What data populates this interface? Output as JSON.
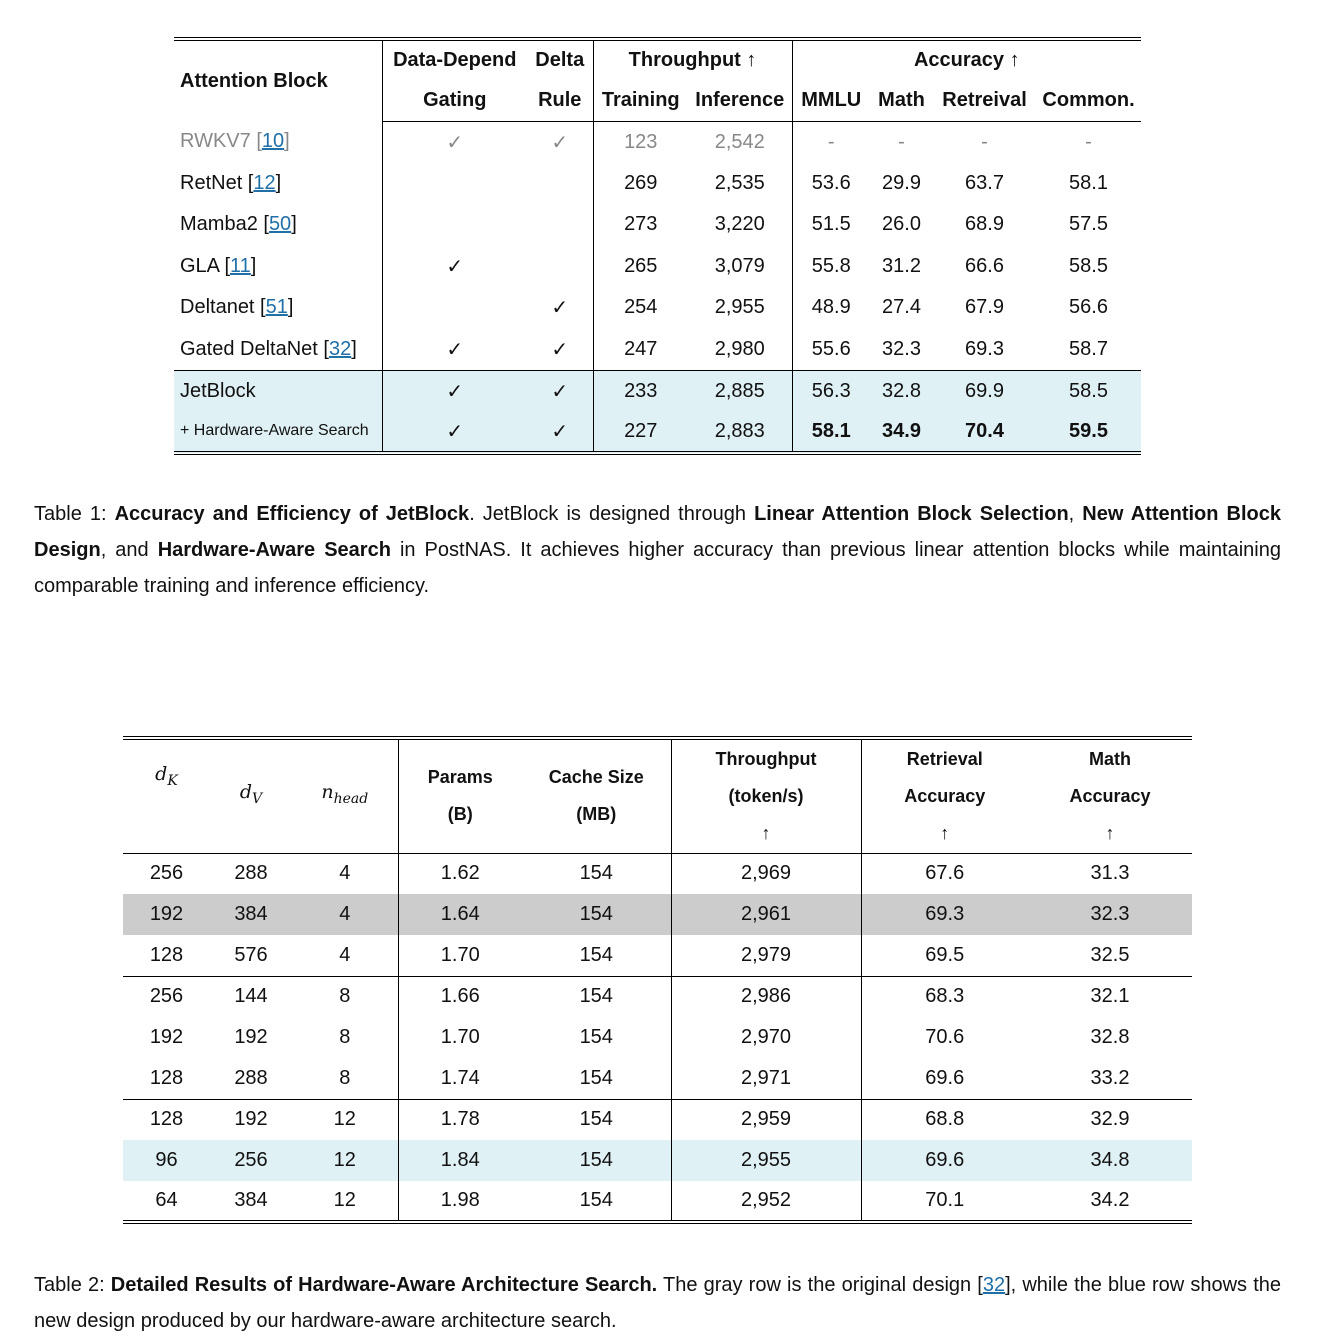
{
  "table1": {
    "header": {
      "attention_block": "Attention Block",
      "gating": [
        "Data-Depend",
        "Gating"
      ],
      "delta": [
        "Delta",
        "Rule"
      ],
      "throughput": "Throughput ↑",
      "training": "Training",
      "inference": "Inference",
      "accuracy": "Accuracy ↑",
      "mmlu": "MMLU",
      "math": "Math",
      "retrieval": "Retreival",
      "common": "Common."
    },
    "rows": [
      {
        "name": [
          {
            "text": "RWKV7 ["
          },
          {
            "text": "10",
            "link": true
          },
          {
            "text": "]"
          }
        ],
        "cells": [
          "✓",
          "✓",
          "123",
          "2,542",
          "-",
          "-",
          "-",
          "-"
        ],
        "muted": true
      },
      {
        "name": [
          {
            "text": "RetNet ["
          },
          {
            "text": "12",
            "link": true
          },
          {
            "text": "]"
          }
        ],
        "cells": [
          null,
          null,
          "269",
          "2,535",
          "53.6",
          "29.9",
          "63.7",
          "58.1"
        ]
      },
      {
        "name": [
          {
            "text": "Mamba2 ["
          },
          {
            "text": "50",
            "link": true
          },
          {
            "text": "]"
          }
        ],
        "cells": [
          null,
          null,
          "273",
          "3,220",
          "51.5",
          "26.0",
          "68.9",
          "57.5"
        ]
      },
      {
        "name": [
          {
            "text": "GLA ["
          },
          {
            "text": "11",
            "link": true
          },
          {
            "text": "]"
          }
        ],
        "cells": [
          "✓",
          null,
          "265",
          "3,079",
          "55.8",
          "31.2",
          "66.6",
          "58.5"
        ]
      },
      {
        "name": [
          {
            "text": "Deltanet ["
          },
          {
            "text": "51",
            "link": true
          },
          {
            "text": "]"
          }
        ],
        "cells": [
          null,
          "✓",
          "254",
          "2,955",
          "48.9",
          "27.4",
          "67.9",
          "56.6"
        ]
      },
      {
        "name": [
          {
            "text": "Gated DeltaNet ["
          },
          {
            "text": "32",
            "link": true
          },
          {
            "text": "]"
          }
        ],
        "cells": [
          "✓",
          "✓",
          "247",
          "2,980",
          "55.6",
          "32.3",
          "69.3",
          "58.7"
        ]
      },
      {
        "name": [
          {
            "text": "JetBlock"
          }
        ],
        "cells": [
          "✓",
          "✓",
          "233",
          "2,885",
          "56.3",
          "32.8",
          "69.9",
          "58.5"
        ],
        "highlight": true
      },
      {
        "name": [
          {
            "text": "+ Hardware-Aware Search"
          }
        ],
        "cells": [
          "✓",
          "✓",
          "227",
          "2,883",
          "58.1",
          "34.9",
          "70.4",
          "59.5"
        ],
        "highlight": true,
        "small_name": true,
        "bold_accuracy": true
      }
    ]
  },
  "caption1": [
    {
      "text": "Table 1: "
    },
    {
      "text": "Accuracy and Efficiency of JetBlock",
      "bold": true
    },
    {
      "text": ". JetBlock is designed through "
    },
    {
      "text": "Linear Attention Block Selection",
      "bold": true
    },
    {
      "text": ", "
    },
    {
      "text": "New Attention Block Design",
      "bold": true
    },
    {
      "text": ", and "
    },
    {
      "text": "Hardware-Aware Search",
      "bold": true
    },
    {
      "text": " in PostNAS. It achieves higher accuracy than previous linear attention blocks while maintaining comparable training and inference efficiency."
    }
  ],
  "table2": {
    "header": [
      {
        "base": "d",
        "sub": "K"
      },
      {
        "base": "d",
        "sub": "V"
      },
      {
        "base": "n",
        "sub": "head"
      },
      {
        "lines": [
          "Params",
          "(B)"
        ]
      },
      {
        "lines": [
          "Cache Size",
          "(MB)"
        ]
      },
      {
        "lines": [
          "Throughput",
          "(token/s)",
          "↑"
        ]
      },
      {
        "lines": [
          "Retrieval",
          "Accuracy",
          "↑"
        ]
      },
      {
        "lines": [
          "Math",
          "Accuracy",
          "↑"
        ]
      }
    ],
    "rows": [
      {
        "cells": [
          "256",
          "288",
          "4",
          "1.62",
          "154",
          "2,969",
          "67.6",
          "31.3"
        ]
      },
      {
        "cells": [
          "192",
          "384",
          "4",
          "1.64",
          "154",
          "2,961",
          "69.3",
          "32.3"
        ],
        "shade": "gray"
      },
      {
        "cells": [
          "128",
          "576",
          "4",
          "1.70",
          "154",
          "2,979",
          "69.5",
          "32.5"
        ]
      },
      {
        "cells": [
          "256",
          "144",
          "8",
          "1.66",
          "154",
          "2,986",
          "68.3",
          "32.1"
        ],
        "group_break": true
      },
      {
        "cells": [
          "192",
          "192",
          "8",
          "1.70",
          "154",
          "2,970",
          "70.6",
          "32.8"
        ]
      },
      {
        "cells": [
          "128",
          "288",
          "8",
          "1.74",
          "154",
          "2,971",
          "69.6",
          "33.2"
        ]
      },
      {
        "cells": [
          "128",
          "192",
          "12",
          "1.78",
          "154",
          "2,959",
          "68.8",
          "32.9"
        ],
        "group_break": true
      },
      {
        "cells": [
          "96",
          "256",
          "12",
          "1.84",
          "154",
          "2,955",
          "69.6",
          "34.8"
        ],
        "shade": "blue"
      },
      {
        "cells": [
          "64",
          "384",
          "12",
          "1.98",
          "154",
          "2,952",
          "70.1",
          "34.2"
        ]
      }
    ]
  },
  "caption2": [
    {
      "text": "Table 2: "
    },
    {
      "text": "Detailed Results of Hardware-Aware Architecture Search.",
      "bold": true
    },
    {
      "text": " The gray row is the original design ["
    },
    {
      "text": "32",
      "link": true
    },
    {
      "text": "], while the blue row shows the new design produced by our hardware-aware architecture search."
    }
  ]
}
